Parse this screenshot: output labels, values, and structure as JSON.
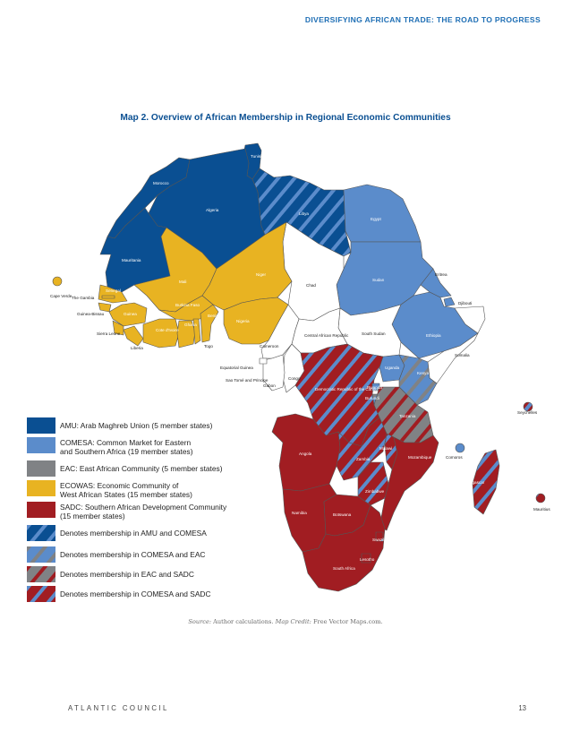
{
  "header": {
    "running_title": "DIVERSIFYING AFRICAN TRADE: THE ROAD TO PROGRESS"
  },
  "map": {
    "title": "Map 2. Overview of African Membership in Regional Economic Communities",
    "colors": {
      "amu": "#0a4f92",
      "comesa": "#5b8ccb",
      "eac": "#808285",
      "ecowas": "#e8b322",
      "sadc": "#a11d22",
      "none": "#ffffff",
      "border": "#555555"
    },
    "country_labels": {
      "tunisia": "Tunisia",
      "morocco": "Morocco",
      "algeria": "Algeria",
      "libya": "Libya",
      "egypt": "Egypt",
      "mauritania": "Mauritania",
      "mali": "Mali",
      "niger": "Niger",
      "chad": "Chad",
      "sudan": "Sudan",
      "eritrea": "Eritrea",
      "djibouti": "Djibouti",
      "ethiopia": "Ethiopia",
      "somalia": "Somalia",
      "south_sudan": "South Sudan",
      "car": "Central African Republic",
      "cape_verde": "Cape Verde",
      "gambia": "The Gambia",
      "senegal": "Senegal",
      "guinea_bissau": "Guinea-Bissau",
      "guinea": "Guinea",
      "sierra_leone": "Sierra Leone",
      "liberia": "Liberia",
      "cote_divoire": "Cote d'Ivoire",
      "burkina_faso": "Burkina Faso",
      "ghana": "Ghana",
      "togo": "Togo",
      "benin": "Benin",
      "nigeria": "Nigeria",
      "cameroon": "Cameroon",
      "equatorial_guinea": "Equatorial Guinea",
      "sao_tome": "Sao Tomé and Principe",
      "gabon": "Gabon",
      "congo": "Congo",
      "drc": "Democratic Republic of the Congo",
      "uganda": "Uganda",
      "kenya": "Kenya",
      "rwanda": "Rwanda",
      "burundi": "Burundi",
      "tanzania": "Tanzania",
      "seychelles": "Seychelles",
      "angola": "Angola",
      "zambia": "Zambia",
      "malawi": "Malawi",
      "mozambique": "Mozambique",
      "comoros": "Comoros",
      "madagascar": "Madagascar",
      "mauritius": "Mauritius",
      "zimbabwe": "Zimbabwe",
      "namibia": "Namibia",
      "botswana": "Botswana",
      "swaziland": "Swaziland",
      "lesotho": "Lesotho",
      "south_africa": "South Africa"
    }
  },
  "legend": [
    {
      "id": "amu",
      "text": "AMU: Arab Maghreb Union (5 member states)"
    },
    {
      "id": "comesa",
      "text": "COMESA: Common Market for Eastern",
      "text2": "and Southern Africa (19 member states)"
    },
    {
      "id": "eac",
      "text": "EAC: East African Community (5 member states)"
    },
    {
      "id": "ecowas",
      "text": "ECOWAS: Economic Community of",
      "text2": "West African States (15 member states)"
    },
    {
      "id": "sadc",
      "text": "SADC: Southern African Development Community",
      "text2": "(15 member states)"
    },
    {
      "id": "amu-comesa",
      "text": "Denotes membership in AMU and COMESA"
    },
    {
      "id": "comesa-eac",
      "text": "Denotes membership in COMESA and EAC"
    },
    {
      "id": "eac-sadc",
      "text": "Denotes membership in EAC and SADC"
    },
    {
      "id": "comesa-sadc",
      "text": "Denotes membership in COMESA and SADC"
    }
  ],
  "source": {
    "label": "Source:",
    "text": " Author calculations. ",
    "credit_label": "Map Credit:",
    "credit_text": " Free Vector Maps.com."
  },
  "footer": {
    "org": "ATLANTIC COUNCIL",
    "page_number": "13"
  }
}
